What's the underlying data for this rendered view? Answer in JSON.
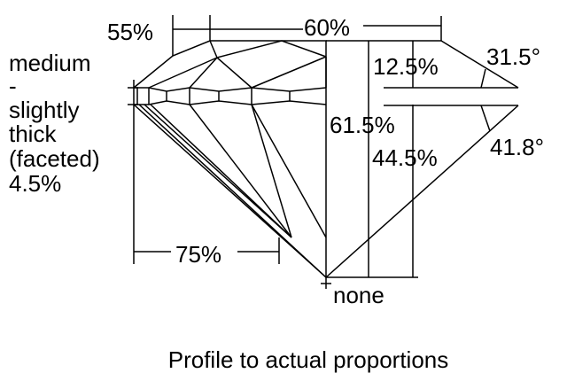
{
  "girdle_label": [
    "medium",
    "-",
    "slightly",
    "thick",
    "(faceted)",
    "4.5%"
  ],
  "measurements": {
    "star_length": "55%",
    "table": "60%",
    "crown_height": "12.5%",
    "crown_angle": "31.5°",
    "total_depth": "61.5%",
    "pavilion_depth": "44.5%",
    "pavilion_angle": "41.8°",
    "lower_half_length": "75%",
    "culet": "none"
  },
  "caption": "Profile to actual proportions",
  "colors": {
    "line": "#000000",
    "background": "#ffffff"
  }
}
